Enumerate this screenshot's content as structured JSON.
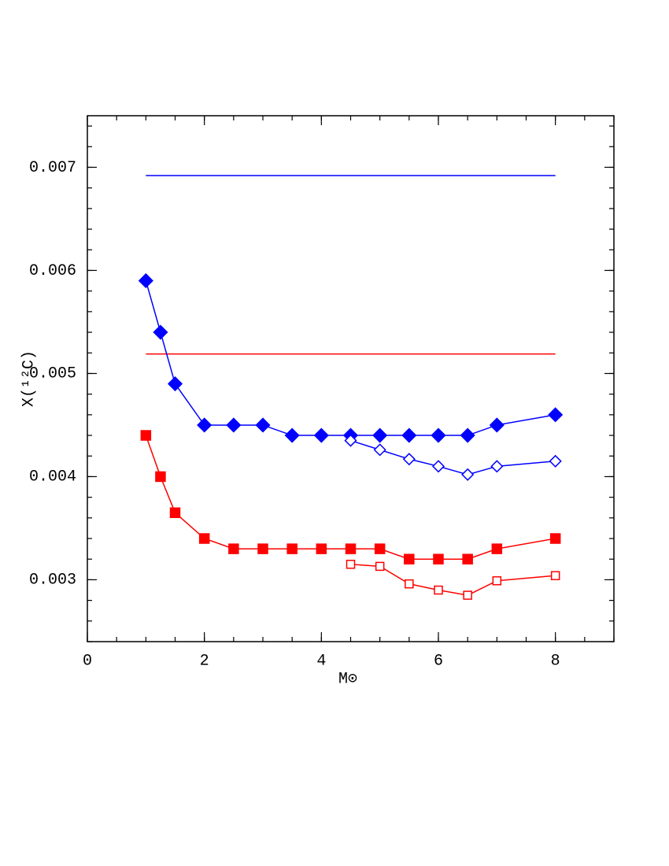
{
  "chart_data": {
    "type": "line",
    "xlabel": "M⊙",
    "ylabel": "X(¹²C)",
    "xlim": [
      0,
      9
    ],
    "ylim": [
      0.0024,
      0.0075
    ],
    "xticks": [
      0,
      2,
      4,
      6,
      8
    ],
    "yticks": [
      0.003,
      0.004,
      0.005,
      0.006,
      0.007
    ],
    "xminor": 4,
    "yminor": 5,
    "ticks_inside": true,
    "series": [
      {
        "color": "#0000ff",
        "marker": "none",
        "x": [
          1,
          8
        ],
        "values": [
          0.00692,
          0.00692
        ]
      },
      {
        "color": "#ff0000",
        "marker": "none",
        "x": [
          1,
          8
        ],
        "values": [
          0.00519,
          0.00519
        ]
      },
      {
        "color": "#0000ff",
        "marker": "diamond",
        "filled": true,
        "x": [
          1,
          1.25,
          1.5,
          2,
          2.5,
          3,
          3.5,
          4,
          4.5,
          5,
          5.5,
          6,
          6.5,
          7,
          8
        ],
        "values": [
          0.0059,
          0.0054,
          0.0049,
          0.0045,
          0.0045,
          0.0045,
          0.0044,
          0.0044,
          0.0044,
          0.0044,
          0.0044,
          0.0044,
          0.0044,
          0.0045,
          0.0046
        ]
      },
      {
        "color": "#0000ff",
        "marker": "diamond",
        "filled": false,
        "x": [
          4.5,
          5,
          5.5,
          6,
          6.5,
          7,
          8
        ],
        "values": [
          0.00435,
          0.00426,
          0.00417,
          0.0041,
          0.00402,
          0.0041,
          0.00415
        ]
      },
      {
        "color": "#ff0000",
        "marker": "square",
        "filled": true,
        "x": [
          1,
          1.25,
          1.5,
          2,
          2.5,
          3,
          3.5,
          4,
          4.5,
          5,
          5.5,
          6,
          6.5,
          7,
          8
        ],
        "values": [
          0.0044,
          0.004,
          0.00365,
          0.0034,
          0.0033,
          0.0033,
          0.0033,
          0.0033,
          0.0033,
          0.0033,
          0.0032,
          0.0032,
          0.0032,
          0.0033,
          0.0034
        ]
      },
      {
        "color": "#ff0000",
        "marker": "square",
        "filled": false,
        "x": [
          4.5,
          5,
          5.5,
          6,
          6.5,
          7,
          8
        ],
        "values": [
          0.00315,
          0.00313,
          0.00296,
          0.0029,
          0.00285,
          0.00299,
          0.00304
        ]
      }
    ]
  }
}
